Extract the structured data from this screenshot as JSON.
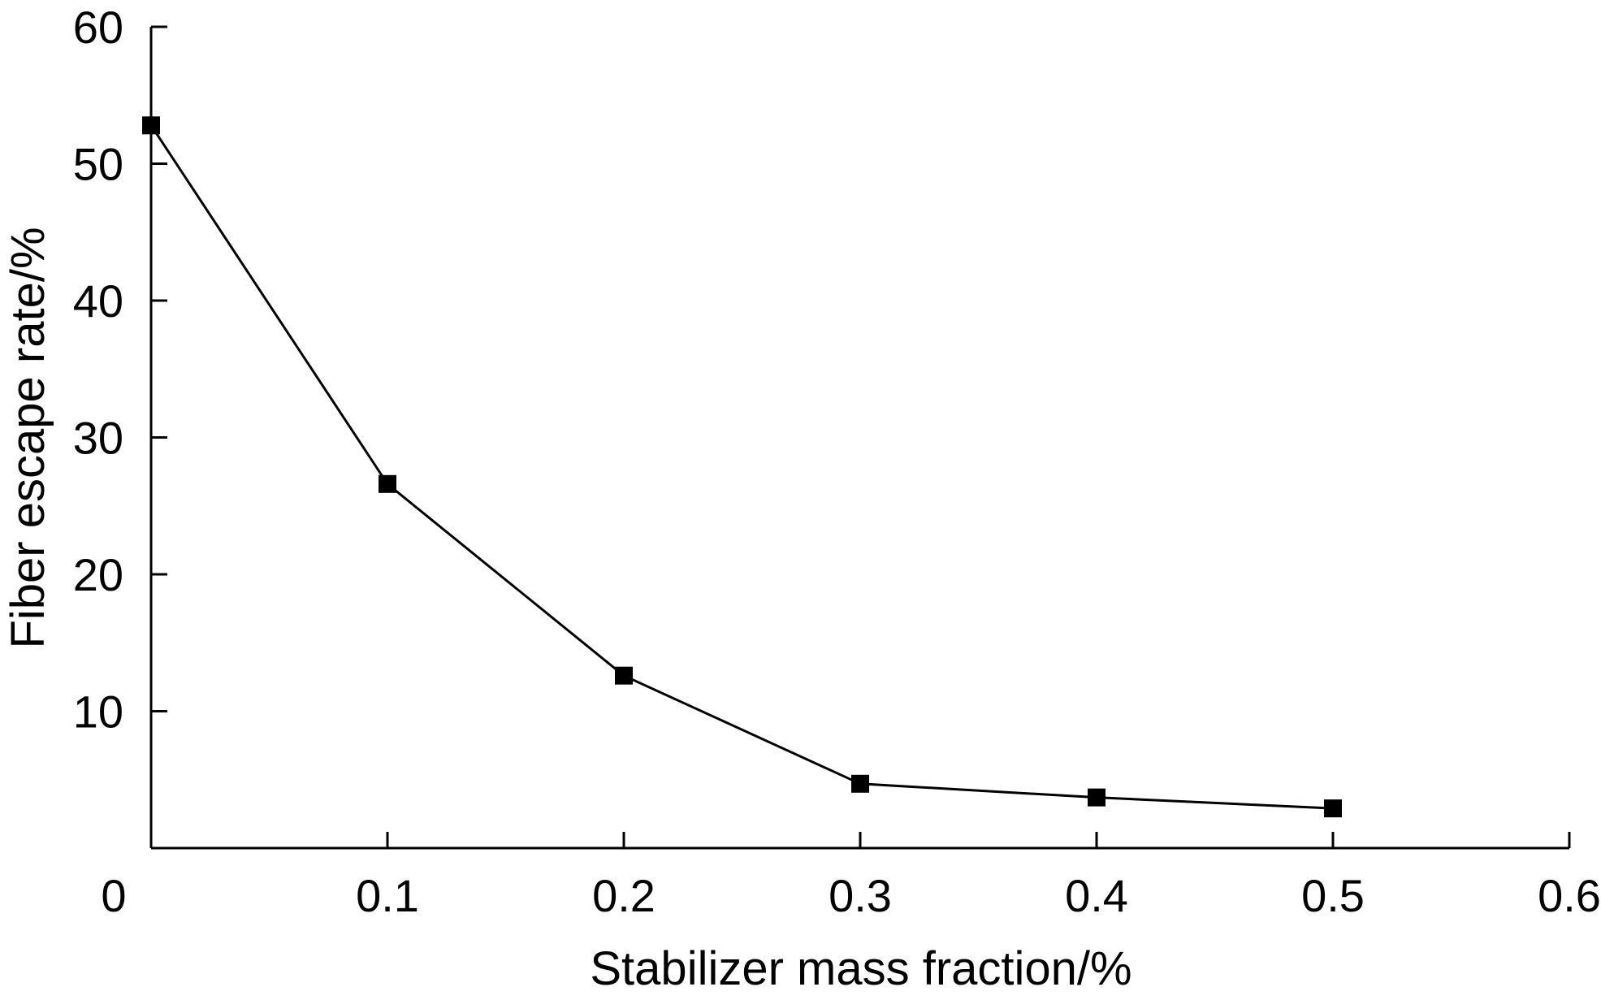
{
  "chart_data": {
    "type": "line",
    "title": "",
    "xlabel": "Stabilizer mass fraction/%",
    "ylabel": "Fiber escape rate/%",
    "xlim": [
      0,
      0.6
    ],
    "ylim": [
      0,
      60
    ],
    "x_ticks": [
      0,
      0.1,
      0.2,
      0.3,
      0.4,
      0.5,
      0.6
    ],
    "x_tick_labels": [
      "0",
      "0.1",
      "0.2",
      "0.3",
      "0.4",
      "0.5",
      "0.6"
    ],
    "y_ticks": [
      10,
      20,
      30,
      40,
      50,
      60
    ],
    "y_tick_labels": [
      "10",
      "20",
      "30",
      "40",
      "50",
      "60"
    ],
    "grid": false,
    "legend": "none",
    "series": [
      {
        "x": [
          0,
          0.1,
          0.2,
          0.3,
          0.4,
          0.5
        ],
        "y": [
          52.8,
          26.6,
          12.6,
          4.7,
          3.7,
          2.9
        ],
        "marker": "square",
        "color": "#000000"
      }
    ]
  }
}
